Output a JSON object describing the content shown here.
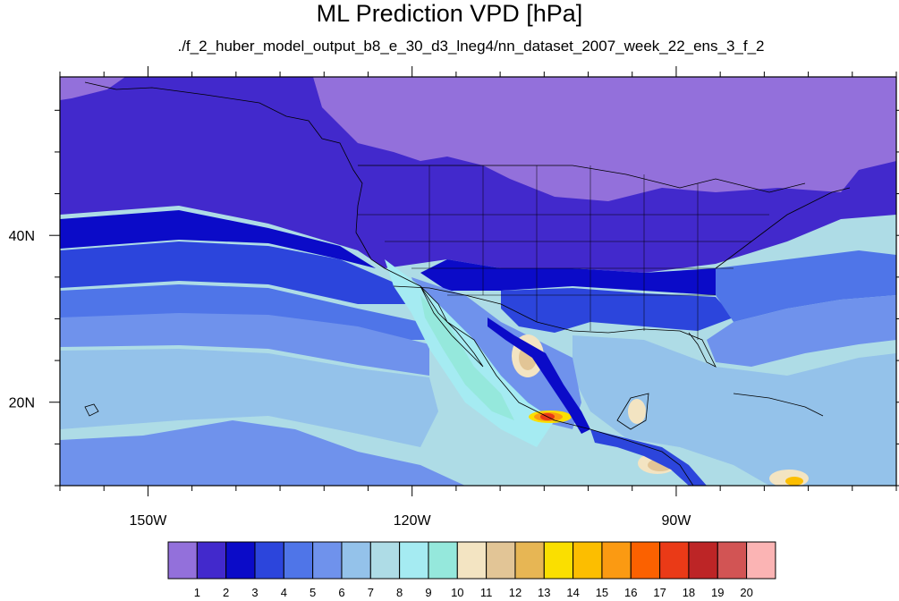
{
  "header": {
    "title": "ML Prediction VPD [hPa]",
    "subtitle": "./f_2_huber_model_output_b8_e_30_d3_lneg4/nn_dataset_2007_week_22_ens_3_f_2"
  },
  "map": {
    "lon_range": [
      -160,
      -65
    ],
    "lat_range": [
      10,
      59
    ],
    "x_ticks": [
      {
        "value": -150,
        "label": "150W"
      },
      {
        "value": -120,
        "label": "120W"
      },
      {
        "value": -90,
        "label": "90W"
      }
    ],
    "y_ticks": [
      {
        "value": 40,
        "label": "40N"
      },
      {
        "value": 20,
        "label": "20N"
      }
    ]
  },
  "colorbar": {
    "labels": [
      "1",
      "2",
      "3",
      "4",
      "5",
      "6",
      "7",
      "8",
      "9",
      "10",
      "11",
      "12",
      "13",
      "14",
      "15",
      "16",
      "17",
      "18",
      "19",
      "20"
    ],
    "colors": [
      "#9370DB",
      "#4229CC",
      "#0B0BC8",
      "#2C45DC",
      "#4F75E8",
      "#6F92EC",
      "#94C2EA",
      "#AEDCE6",
      "#A5EBF2",
      "#95E8DC",
      "#F3E4C2",
      "#E2C596",
      "#E7B654",
      "#FADF00",
      "#FCBE00",
      "#FB9A12",
      "#FB6100",
      "#EA3A17",
      "#BD2526",
      "#D25454",
      "#FBB4B4"
    ]
  }
}
